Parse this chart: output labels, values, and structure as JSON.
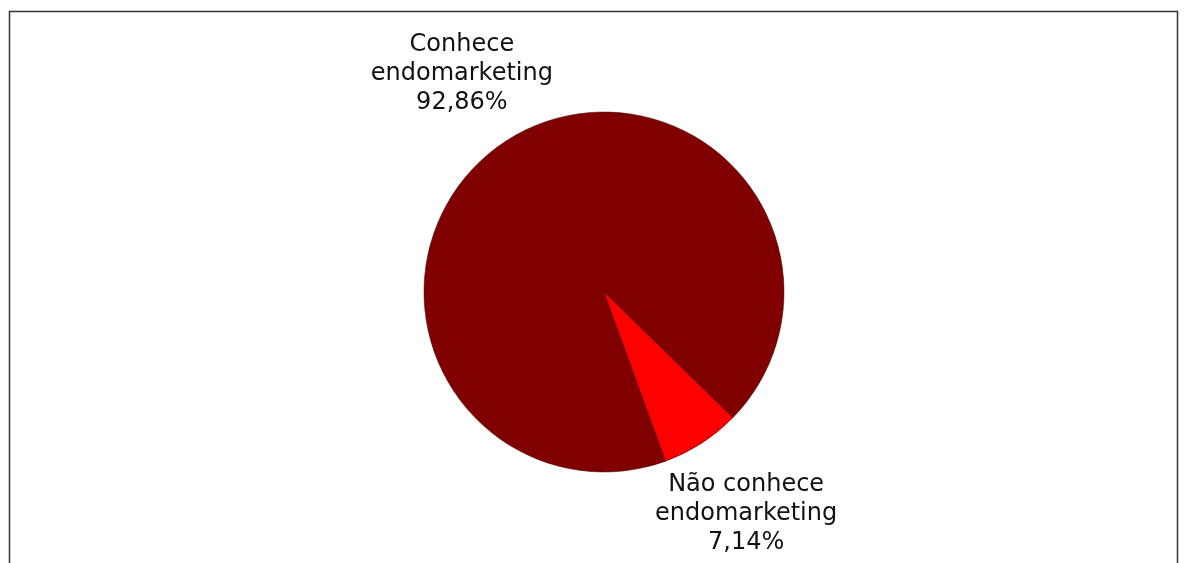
{
  "chart_data": {
    "type": "pie",
    "categories": [
      "Conhece endomarketing",
      "Não conhece endomarketing"
    ],
    "values": [
      92.86,
      7.14
    ],
    "colors": [
      "#800000",
      "#ff0000"
    ],
    "value_labels": [
      "92,86%",
      "7,14%"
    ]
  }
}
